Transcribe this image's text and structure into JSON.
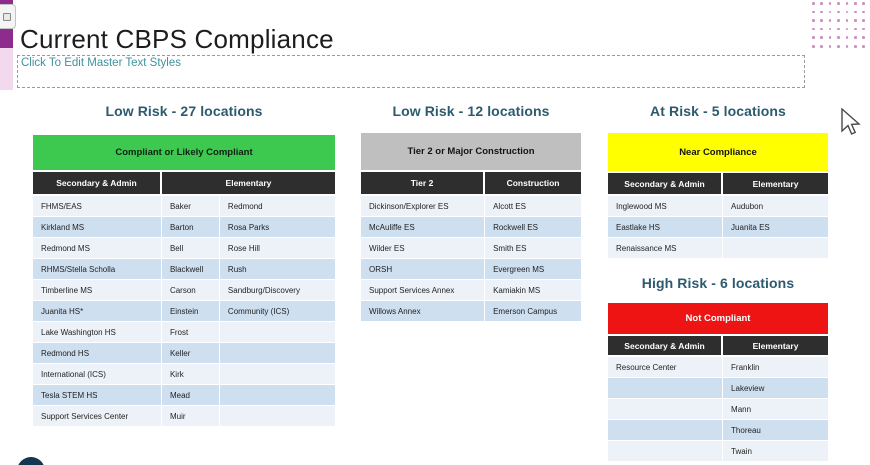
{
  "colors": {
    "accent_purple": "#8E2C8E",
    "accent_pink": "#F3D9ED",
    "dot_pink": "#C77AB8",
    "banner_green": "#3DC84F",
    "banner_gray": "#BFBFBF",
    "banner_yellow": "#FFFF00",
    "banner_red": "#EE1414",
    "column_header_dark": "#2E2E2E",
    "row_band_light": "#EDF2F9",
    "row_band_dark": "#CEDFF0",
    "section_heading_text": "#2C5A6E",
    "subtitle_text": "#3F929E"
  },
  "slide": {
    "title": "Current CBPS Compliance",
    "subtitle_placeholder": "Click To Edit Master Text Styles"
  },
  "tables": [
    {
      "id": "low-risk-compliant",
      "heading": "Low Risk - 27 locations",
      "banner": "Compliant or Likely Compliant",
      "banner_bg": "#3DC84F",
      "banner_fg": "#0E2212",
      "headers": [
        {
          "label": "Secondary & Admin",
          "width_pct": 42.7
        },
        {
          "label": "Elementary",
          "width_pct": 57.3
        }
      ],
      "col_widths_pct": [
        42.7,
        19.2,
        38.1
      ],
      "rows": [
        [
          "FHMS/EAS",
          "Baker",
          "Redmond"
        ],
        [
          "Kirkland MS",
          "Barton",
          "Rosa Parks"
        ],
        [
          "Redmond MS",
          "Bell",
          "Rose Hill"
        ],
        [
          "RHMS/Stella Scholla",
          "Blackwell",
          "Rush"
        ],
        [
          "Timberline MS",
          "Carson",
          "Sandburg/Discovery"
        ],
        [
          "Juanita HS*",
          "Einstein",
          "Community (ICS)"
        ],
        [
          "Lake Washington HS",
          "Frost",
          ""
        ],
        [
          "Redmond HS",
          "Keller",
          ""
        ],
        [
          "International (ICS)",
          "Kirk",
          ""
        ],
        [
          "Tesla STEM HS",
          "Mead",
          ""
        ],
        [
          "Support Services Center",
          "Muir",
          ""
        ]
      ]
    },
    {
      "id": "low-risk-tier2",
      "heading": "Low Risk - 12 locations",
      "banner": "Tier 2 or Major Construction",
      "banner_bg": "#BFBFBF",
      "banner_fg": "#141414",
      "headers": [
        {
          "label": "Tier 2",
          "width_pct": 56.4
        },
        {
          "label": "Construction",
          "width_pct": 43.6
        }
      ],
      "col_widths_pct": [
        56.4,
        43.6
      ],
      "rows": [
        [
          "Dickinson/Explorer ES",
          "Alcott ES"
        ],
        [
          "McAuliffe ES",
          "Rockwell ES"
        ],
        [
          "Wilder ES",
          "Smith ES"
        ],
        [
          "ORSH",
          "Evergreen MS"
        ],
        [
          "Support Services Annex",
          "Kamiakin MS"
        ],
        [
          "Willows Annex",
          "Emerson Campus"
        ]
      ]
    },
    {
      "id": "at-risk",
      "heading": "At Risk - 5 locations",
      "banner": "Near Compliance",
      "banner_bg": "#FFFF00",
      "banner_fg": "#141414",
      "headers": [
        {
          "label": "Secondary & Admin",
          "width_pct": 52.3
        },
        {
          "label": "Elementary",
          "width_pct": 47.7
        }
      ],
      "col_widths_pct": [
        52.3,
        47.7
      ],
      "rows": [
        [
          "Inglewood MS",
          "Audubon"
        ],
        [
          "Eastlake HS",
          "Juanita ES"
        ],
        [
          "Renaissance MS",
          ""
        ]
      ]
    },
    {
      "id": "high-risk",
      "heading": "High Risk - 6 locations",
      "banner": "Not Compliant",
      "banner_bg": "#EE1414",
      "banner_fg": "#FFFFFF",
      "headers": [
        {
          "label": "Secondary & Admin",
          "width_pct": 52.3
        },
        {
          "label": "Elementary",
          "width_pct": 47.7
        }
      ],
      "col_widths_pct": [
        52.3,
        47.7
      ],
      "rows": [
        [
          "Resource Center",
          "Franklin"
        ],
        [
          "",
          "Lakeview"
        ],
        [
          "",
          "Mann"
        ],
        [
          "",
          "Thoreau"
        ],
        [
          "",
          "Twain"
        ]
      ]
    }
  ]
}
